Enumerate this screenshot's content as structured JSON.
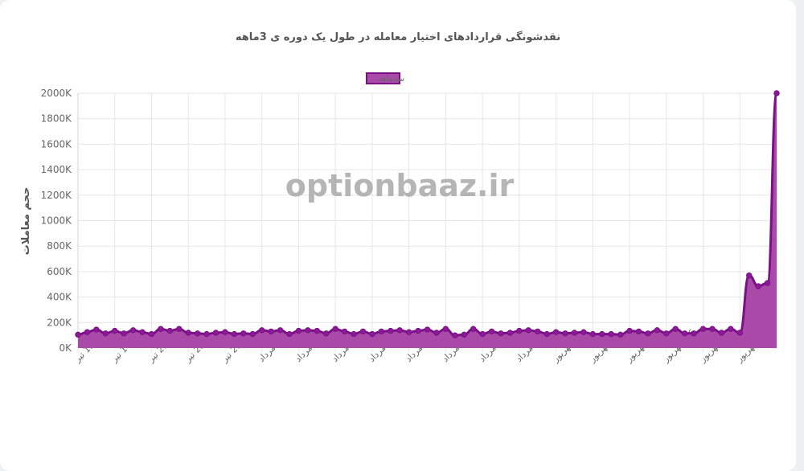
{
  "chart_data": {
    "type": "area",
    "title": "نقدشونگی قراردادهای اختیار معامله در طول یک دوره ی 3ماهه",
    "ylabel": "حجم معاملات",
    "xlabel": "",
    "watermark": "optionbaaz.ir",
    "legend": {
      "label": "سه‌ماهه",
      "position": "top"
    },
    "grid": true,
    "colors": {
      "fill": "#a94aa9",
      "stroke": "#7a0f86",
      "point": "#8b1a96",
      "grid": "#e6e6e6"
    },
    "ylim": [
      0,
      2000
    ],
    "y_ticks": [
      "0K",
      "200K",
      "400K",
      "600K",
      "800K",
      "1000K",
      "1200K",
      "1400K",
      "1600K",
      "1800K",
      "2000K"
    ],
    "x_tick_labels": [
      "13 تیر",
      "17 تیر",
      "21 تیر",
      "25 تیر",
      "29 تیر",
      "3 مرداد",
      "7 مرداد",
      "11 مرداد",
      "15 مرداد",
      "19 مرداد",
      "23 مرداد",
      "27 مرداد",
      "31 مرداد",
      "4 شهریور",
      "8 شهریور",
      "12 شهریور",
      "16 شهریور",
      "20 شهریور",
      "24 شهریور"
    ],
    "series": [
      {
        "name": "سه‌ماهه",
        "values": [
          105,
          125,
          145,
          115,
          135,
          115,
          140,
          125,
          110,
          150,
          135,
          150,
          120,
          115,
          110,
          120,
          125,
          110,
          115,
          110,
          140,
          130,
          140,
          110,
          135,
          140,
          135,
          115,
          150,
          130,
          110,
          130,
          110,
          130,
          135,
          140,
          125,
          135,
          145,
          120,
          150,
          100,
          105,
          150,
          110,
          130,
          115,
          120,
          135,
          140,
          130,
          110,
          125,
          115,
          120,
          125,
          110,
          110,
          110,
          105,
          135,
          130,
          115,
          140,
          115,
          150,
          115,
          115,
          150,
          150,
          120,
          150,
          120,
          570,
          485,
          510,
          2000
        ]
      }
    ]
  }
}
